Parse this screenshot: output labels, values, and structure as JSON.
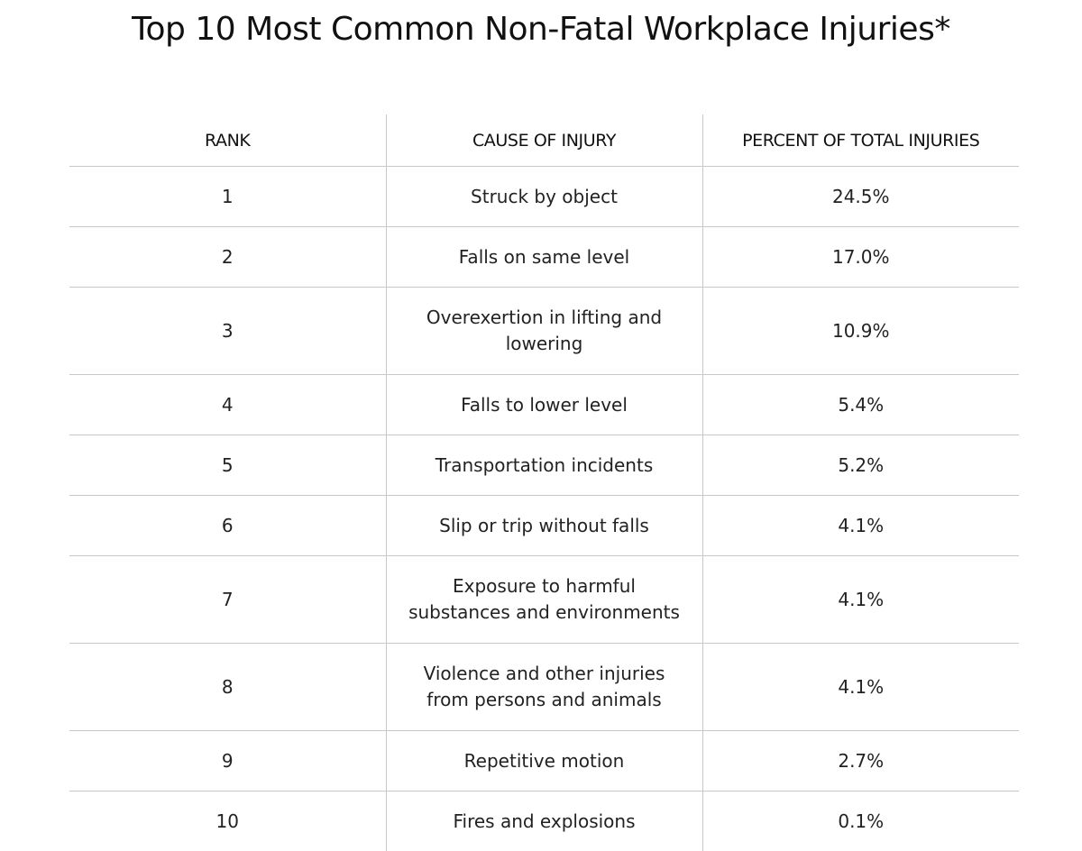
{
  "title": "Top 10 Most Common Non-Fatal Workplace Injuries*",
  "chart_data": {
    "type": "table",
    "title": "Top 10 Most Common Non-Fatal Workplace Injuries*",
    "columns": [
      "RANK",
      "CAUSE OF INJURY",
      "PERCENT OF TOTAL INJURIES"
    ],
    "rows": [
      {
        "rank": "1",
        "cause": "Struck by object",
        "percent": "24.5%",
        "value": 24.5
      },
      {
        "rank": "2",
        "cause": "Falls on same level",
        "percent": "17.0%",
        "value": 17.0
      },
      {
        "rank": "3",
        "cause": "Overexertion in lifting and lowering",
        "percent": "10.9%",
        "value": 10.9
      },
      {
        "rank": "4",
        "cause": "Falls to lower level",
        "percent": "5.4%",
        "value": 5.4
      },
      {
        "rank": "5",
        "cause": "Transportation incidents",
        "percent": "5.2%",
        "value": 5.2
      },
      {
        "rank": "6",
        "cause": "Slip or trip without falls",
        "percent": "4.1%",
        "value": 4.1
      },
      {
        "rank": "7",
        "cause": "Exposure to harmful substances and environments",
        "percent": "4.1%",
        "value": 4.1
      },
      {
        "rank": "8",
        "cause": "Violence and other injuries from persons and animals",
        "percent": "4.1%",
        "value": 4.1
      },
      {
        "rank": "9",
        "cause": "Repetitive motion",
        "percent": "2.7%",
        "value": 2.7
      },
      {
        "rank": "10",
        "cause": "Fires and explosions",
        "percent": "0.1%",
        "value": 0.1
      }
    ]
  },
  "colors": {
    "text": "#222222",
    "rule": "#c8c8c8",
    "background": "#ffffff"
  }
}
